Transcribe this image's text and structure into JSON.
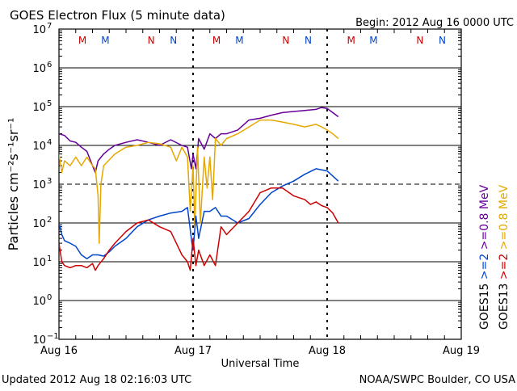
{
  "chart_data": {
    "type": "line",
    "title": "GOES Electron Flux (5 minute data)",
    "begin": "Begin: 2012 Aug 16 0000 UTC",
    "xlabel": "Universal Time",
    "ylabel": "Particles cm⁻²s⁻¹sr⁻¹",
    "yscale": "log",
    "ylim": [
      0.1,
      10000000
    ],
    "xlim": [
      0,
      72
    ],
    "x_unit": "hours since Aug 16 0000 UTC",
    "x_ticks": [
      {
        "x": 0,
        "label": "Aug 16"
      },
      {
        "x": 24,
        "label": "Aug 17"
      },
      {
        "x": 48,
        "label": "Aug 18"
      },
      {
        "x": 72,
        "label": "Aug 19"
      }
    ],
    "y_ticks": [
      {
        "exp": -1,
        "label": "10",
        "sup": "−1"
      },
      {
        "exp": 0,
        "label": "10",
        "sup": "0"
      },
      {
        "exp": 1,
        "label": "10",
        "sup": "1"
      },
      {
        "exp": 2,
        "label": "10",
        "sup": "2"
      },
      {
        "exp": 3,
        "label": "10",
        "sup": "3"
      },
      {
        "exp": 4,
        "label": "10",
        "sup": "4"
      },
      {
        "exp": 5,
        "label": "10",
        "sup": "5"
      },
      {
        "exp": 6,
        "label": "10",
        "sup": "6"
      },
      {
        "exp": 7,
        "label": "10",
        "sup": "7"
      }
    ],
    "grid": "horizontal at each decade; dashed at 10^3",
    "markers": [
      {
        "x": 4.2,
        "label": "M",
        "color": "#cc0000"
      },
      {
        "x": 8.3,
        "label": "M",
        "color": "#0044cc"
      },
      {
        "x": 16.5,
        "label": "N",
        "color": "#cc0000"
      },
      {
        "x": 20.5,
        "label": "N",
        "color": "#0044cc"
      },
      {
        "x": 28.2,
        "label": "M",
        "color": "#cc0000"
      },
      {
        "x": 32.3,
        "label": "M",
        "color": "#0044cc"
      },
      {
        "x": 40.6,
        "label": "N",
        "color": "#cc0000"
      },
      {
        "x": 44.6,
        "label": "N",
        "color": "#0044cc"
      },
      {
        "x": 52.3,
        "label": "M",
        "color": "#cc0000"
      },
      {
        "x": 56.3,
        "label": "M",
        "color": "#0044cc"
      },
      {
        "x": 64.6,
        "label": "N",
        "color": "#cc0000"
      },
      {
        "x": 68.6,
        "label": "N",
        "color": "#0044cc"
      }
    ],
    "legend": [
      {
        "row": "GOES15",
        "label": ">=2",
        "energy_label": ">=0.8 MeV",
        "color_low": "#0044cc",
        "color_high": "#660099"
      },
      {
        "row": "GOES13",
        "label": ">=2",
        "energy_label": ">=0.8 MeV",
        "color_low": "#cc0000",
        "color_high": "#e6a800"
      }
    ],
    "series": [
      {
        "name": "GOES15 >=0.8 MeV",
        "color": "#660099",
        "x": [
          0,
          1,
          2,
          3,
          4,
          5,
          6,
          6.5,
          7,
          8,
          9,
          10,
          12,
          14,
          16,
          18,
          20,
          22,
          23,
          23.7,
          24,
          24.5,
          25,
          26,
          27,
          28,
          29,
          30,
          32,
          34,
          36,
          38,
          40,
          42,
          44,
          46,
          47,
          48,
          49,
          50
        ],
        "y": [
          20000,
          18000,
          13000,
          12000,
          9000,
          7000,
          3000,
          2000,
          4000,
          6000,
          8000,
          10000,
          12000,
          14000,
          12000,
          10000,
          14000,
          10000,
          9000,
          2500,
          6000,
          2500,
          15000,
          8000,
          20000,
          15000,
          20000,
          20000,
          25000,
          45000,
          50000,
          60000,
          70000,
          75000,
          80000,
          85000,
          95000,
          90000,
          70000,
          55000
        ]
      },
      {
        "name": "GOES13 >=0.8 MeV",
        "color": "#e6a800",
        "x": [
          0,
          0.5,
          1,
          2,
          3,
          4,
          5,
          6,
          6.5,
          7,
          7.2,
          7.5,
          8,
          10,
          12,
          14,
          16,
          18,
          20,
          21,
          22,
          23,
          23.5,
          24,
          24.3,
          24.8,
          25.3,
          26,
          26.5,
          27,
          27.5,
          28,
          29,
          30,
          32,
          34,
          36,
          38,
          40,
          42,
          44,
          46,
          47,
          48,
          49,
          50
        ],
        "y": [
          6000,
          2000,
          4000,
          3000,
          5000,
          3000,
          5000,
          3000,
          2500,
          500,
          30,
          1000,
          3000,
          6000,
          9000,
          10000,
          12000,
          11000,
          9000,
          4000,
          9000,
          5000,
          200,
          3000,
          80,
          9000,
          100,
          5000,
          800,
          5000,
          400,
          15000,
          10000,
          15000,
          20000,
          30000,
          45000,
          45000,
          40000,
          35000,
          30000,
          35000,
          30000,
          25000,
          20000,
          15000
        ]
      },
      {
        "name": "GOES15 >=2 MeV",
        "color": "#0044cc",
        "x": [
          0,
          0.5,
          1,
          2,
          3,
          4,
          5,
          6,
          7,
          8,
          9,
          10,
          12,
          14,
          16,
          18,
          20,
          22,
          23,
          23.8,
          24,
          24.5,
          25,
          26,
          27,
          28,
          29,
          30,
          32,
          34,
          36,
          38,
          40,
          42,
          44,
          46,
          48,
          50
        ],
        "y": [
          100,
          50,
          35,
          30,
          25,
          15,
          12,
          15,
          15,
          14,
          18,
          25,
          40,
          80,
          120,
          150,
          180,
          200,
          250,
          30,
          20,
          150,
          40,
          200,
          200,
          250,
          150,
          150,
          100,
          130,
          300,
          600,
          900,
          1200,
          1800,
          2500,
          2200,
          1200
        ]
      },
      {
        "name": "GOES13 >=2 MeV",
        "color": "#cc0000",
        "x": [
          0,
          0.5,
          1,
          2,
          3,
          4,
          5,
          6,
          6.5,
          7,
          8,
          9,
          10,
          12,
          14,
          16,
          18,
          20,
          21,
          22,
          23,
          23.5,
          24,
          24.5,
          25,
          26,
          27,
          28,
          29,
          30,
          32,
          34,
          36,
          38,
          40,
          42,
          44,
          45,
          46,
          47,
          48,
          49,
          50
        ],
        "y": [
          30,
          10,
          8,
          7,
          8,
          8,
          7,
          9,
          6,
          8,
          12,
          20,
          30,
          60,
          100,
          120,
          80,
          60,
          30,
          15,
          10,
          6,
          40,
          8,
          20,
          8,
          15,
          8,
          80,
          50,
          100,
          200,
          600,
          800,
          800,
          500,
          400,
          300,
          350,
          280,
          250,
          180,
          100
        ]
      }
    ]
  },
  "footer": {
    "updated": "Updated 2012 Aug 18 02:16:03 UTC",
    "credit": "NOAA/SWPC Boulder, CO USA"
  },
  "colors": {
    "purple": "#660099",
    "orange": "#e6a800",
    "blue": "#0044cc",
    "red": "#cc0000"
  }
}
